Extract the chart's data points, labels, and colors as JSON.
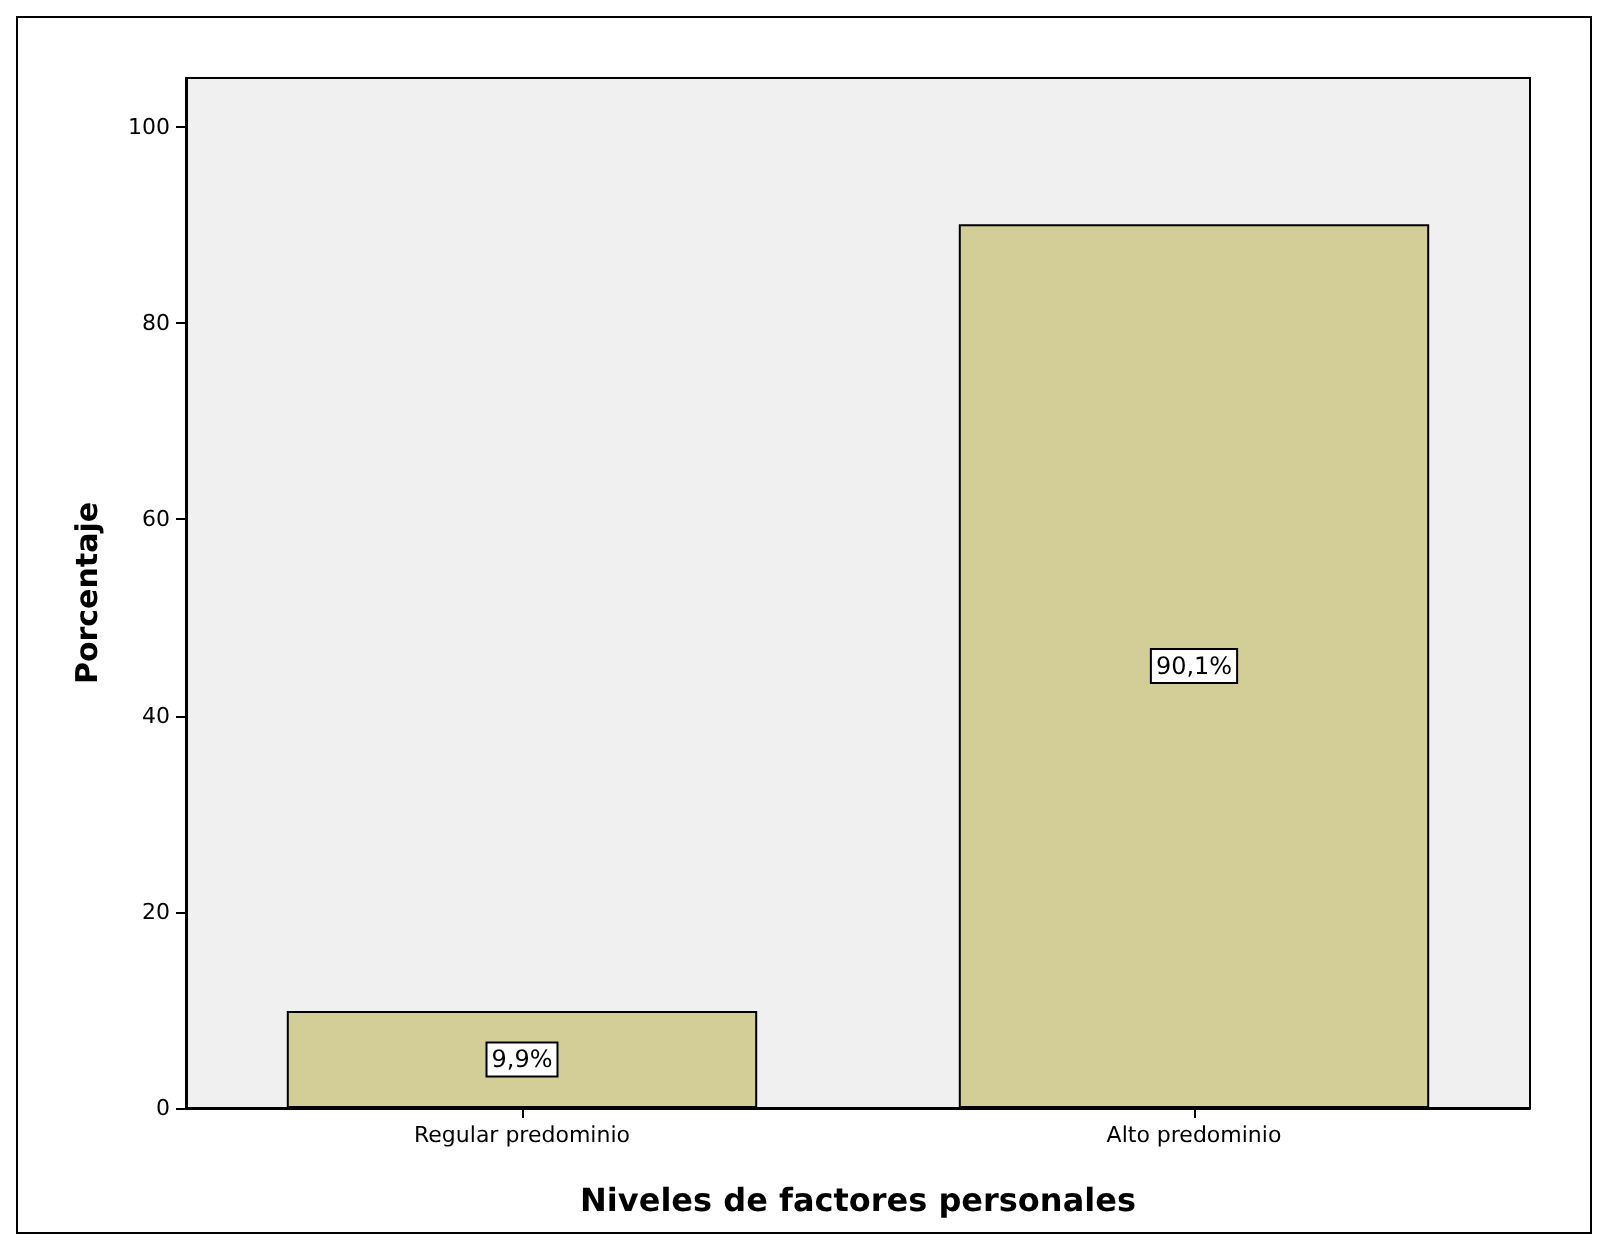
{
  "chart_data": {
    "type": "bar",
    "xlabel": "Niveles de factores personales",
    "ylabel": "Porcentaje",
    "categories": [
      "Regular predominio",
      "Alto predominio"
    ],
    "values": [
      9.9,
      90.1
    ],
    "color": "#d3ce97",
    "value_labels": [
      "9,9%",
      "90,1%"
    ],
    "ylim": [
      0,
      105
    ],
    "yticks": [
      0,
      20,
      40,
      60,
      80,
      100
    ],
    "grid": false
  }
}
